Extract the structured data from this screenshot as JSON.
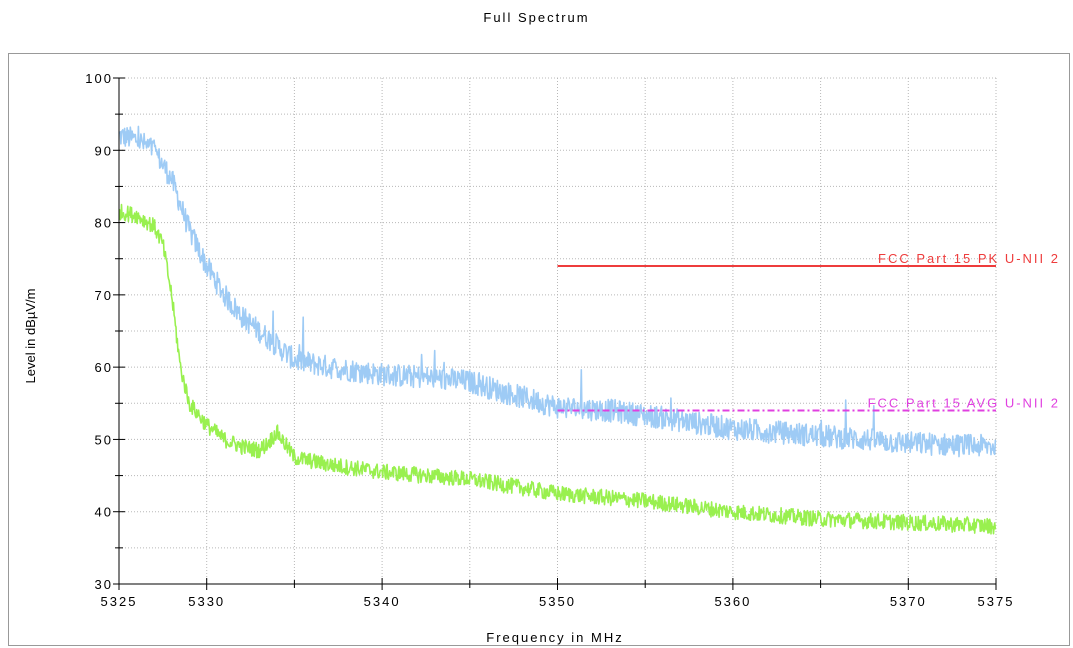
{
  "chart_data": {
    "type": "line",
    "title": "Full Spectrum",
    "xlabel": "Frequency in MHz",
    "ylabel": "Level in dBµV/m",
    "xlim": [
      5325,
      5375
    ],
    "ylim": [
      30,
      100
    ],
    "x_ticks": [
      5325,
      5330,
      5340,
      5350,
      5360,
      5370,
      5375
    ],
    "x_tick_labels": [
      "5325",
      "5330",
      "5340",
      "5350",
      "5360",
      "5370",
      "5375"
    ],
    "y_ticks": [
      30,
      40,
      50,
      60,
      70,
      80,
      90,
      100
    ],
    "y_tick_labels": [
      "30",
      "40",
      "50",
      "60",
      "70",
      "80",
      "90",
      "100"
    ],
    "grid": true,
    "series": [
      {
        "color": "#9ecbf5",
        "noise": 1.6,
        "x": [
          5325,
          5326,
          5327,
          5328,
          5329,
          5330,
          5331,
          5332,
          5333,
          5334,
          5335,
          5337,
          5340,
          5343,
          5345,
          5347,
          5350,
          5353,
          5356,
          5360,
          5365,
          5370,
          5375
        ],
        "values": [
          92,
          91.5,
          90,
          86,
          79,
          74,
          70,
          67,
          65,
          63,
          61,
          60,
          59,
          58.5,
          58,
          56.5,
          54.5,
          54,
          53,
          51.5,
          50.5,
          49.5,
          49
        ]
      },
      {
        "color": "#99f04f",
        "noise": 1.1,
        "x": [
          5325,
          5326,
          5327,
          5327.5,
          5328,
          5328.5,
          5329,
          5330,
          5331,
          5332,
          5333,
          5333.5,
          5334,
          5335,
          5337,
          5340,
          5345,
          5350,
          5355,
          5360,
          5365,
          5370,
          5375
        ],
        "values": [
          81.5,
          81,
          79.5,
          77,
          70,
          60,
          55,
          52,
          50,
          49,
          48.5,
          49.5,
          51,
          47.5,
          46.5,
          45.5,
          44.5,
          42.5,
          41.5,
          40,
          39,
          38.5,
          38
        ]
      }
    ],
    "limit_lines": [
      {
        "name": "FCC Part 15  PK  U-NII 2",
        "x": [
          5350,
          5375
        ],
        "value": 74,
        "color": "#ee3c3c",
        "dash": "solid"
      },
      {
        "name": "FCC Part 15  AVG  U-NII 2",
        "x": [
          5350,
          5375
        ],
        "value": 54,
        "color": "#e040e0",
        "dash": "dashdot"
      }
    ]
  }
}
